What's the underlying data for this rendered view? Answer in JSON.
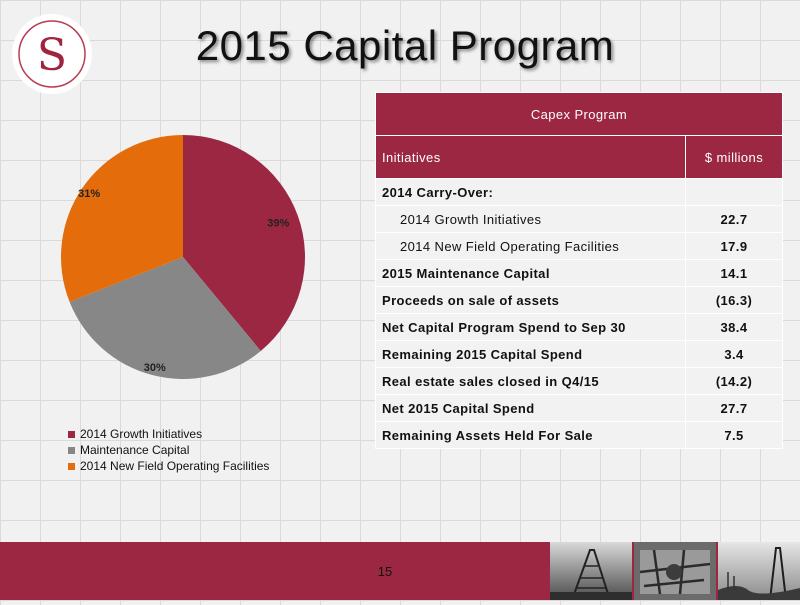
{
  "logo": {
    "letter": "S"
  },
  "title": "2015 Capital Program",
  "page_number": "15",
  "colors": {
    "accent": "#9b2743",
    "gray": "#878787",
    "orange": "#e46c0a"
  },
  "chart_data": {
    "type": "pie",
    "slices": [
      {
        "name": "2014 Growth Initiatives",
        "value": 39,
        "label": "39%",
        "color": "#9b2743"
      },
      {
        "name": "Maintenance Capital",
        "value": 30,
        "label": "30%",
        "color": "#878787"
      },
      {
        "name": "2014 New Field Operating Facilities",
        "value": 31,
        "label": "31%",
        "color": "#e46c0a"
      }
    ],
    "legend_position": "bottom-left"
  },
  "table": {
    "title": "Capex Program",
    "col1": "Initiatives",
    "col2": "$ millions",
    "rows": [
      {
        "label": "2014 Carry-Over:",
        "value": ""
      },
      {
        "label": "2014 Growth Initiatives",
        "value": "22.7"
      },
      {
        "label": "2014 New Field Operating Facilities",
        "value": "17.9"
      },
      {
        "label": "2015 Maintenance Capital",
        "value": "14.1"
      },
      {
        "label": "Proceeds on sale of assets",
        "value": "(16.3)"
      },
      {
        "label": "Net Capital Program Spend to Sep 30",
        "value": "38.4"
      },
      {
        "label": "Remaining 2015 Capital Spend",
        "value": "3.4"
      },
      {
        "label": "Real estate sales closed in Q4/15",
        "value": "(14.2)"
      },
      {
        "label": "Net 2015 Capital Spend",
        "value": "27.7"
      },
      {
        "label": "Remaining Assets Held For Sale",
        "value": "7.5"
      }
    ]
  }
}
